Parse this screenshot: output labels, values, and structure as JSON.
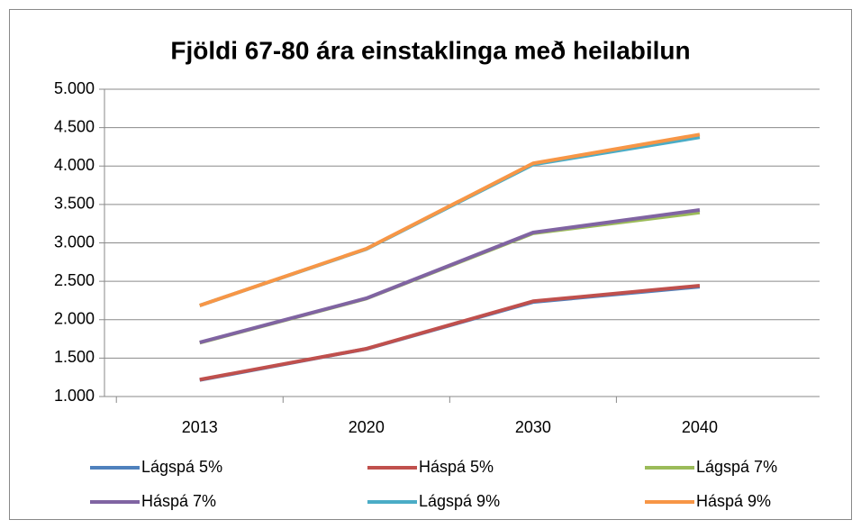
{
  "chart_data": {
    "type": "line",
    "title": "Fjöldi 67-80 ára einstaklinga með heilabilun",
    "categories": [
      "2013",
      "2020",
      "2030",
      "2040"
    ],
    "series": [
      {
        "name": "Lágspá 5%",
        "color": "#4f81bd",
        "values": [
          1215,
          1620,
          2230,
          2430
        ]
      },
      {
        "name": "Háspá 5%",
        "color": "#c0504d",
        "values": [
          1220,
          1622,
          2240,
          2443
        ]
      },
      {
        "name": "Lágspá 7%",
        "color": "#9bbb59",
        "values": [
          1700,
          2275,
          3125,
          3395
        ]
      },
      {
        "name": "Háspá 7%",
        "color": "#8064a2",
        "values": [
          1704,
          2279,
          3135,
          3428
        ]
      },
      {
        "name": "Lágspá 9%",
        "color": "#4bacc6",
        "values": [
          2185,
          2920,
          4020,
          4375
        ]
      },
      {
        "name": "Háspá 9%",
        "color": "#f79646",
        "values": [
          2185,
          2924,
          4035,
          4410
        ]
      }
    ],
    "ylim": [
      1000,
      5000
    ],
    "yticks": [
      {
        "value": 1000,
        "label": "1.000"
      },
      {
        "value": 1500,
        "label": "1.500"
      },
      {
        "value": 2000,
        "label": "2.000"
      },
      {
        "value": 2500,
        "label": "2.500"
      },
      {
        "value": 3000,
        "label": "3.000"
      },
      {
        "value": 3500,
        "label": "3.500"
      },
      {
        "value": 4000,
        "label": "4.000"
      },
      {
        "value": 4500,
        "label": "4.500"
      },
      {
        "value": 5000,
        "label": "5.000"
      }
    ],
    "grid": true,
    "legend": "bottom"
  }
}
